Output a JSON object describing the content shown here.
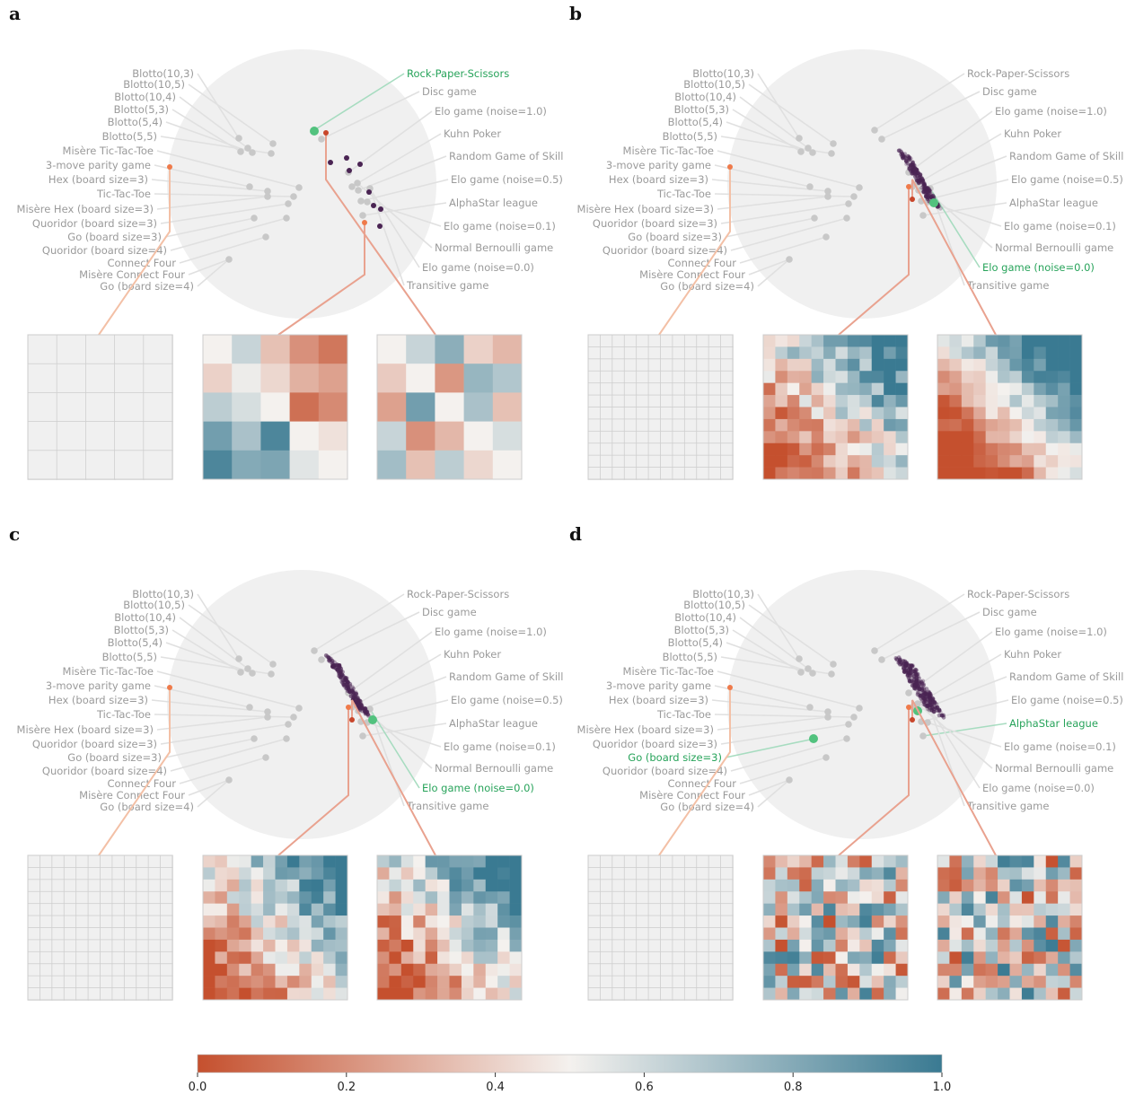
{
  "figure": {
    "panels": [
      {
        "letter": "a",
        "highlight": "Rock-Paper-Scissors",
        "grid": 5,
        "heatmaps": [
          [
            [
              0.5,
              0.62,
              0.35,
              0.2,
              0.12
            ],
            [
              0.4,
              0.52,
              0.42,
              0.3,
              0.25
            ],
            [
              0.65,
              0.58,
              0.5,
              0.1,
              0.18
            ],
            [
              0.85,
              0.7,
              0.95,
              0.5,
              0.45
            ],
            [
              0.95,
              0.8,
              0.82,
              0.55,
              0.5
            ]
          ],
          [
            [
              0.5,
              0.62,
              0.78,
              0.4,
              0.32
            ],
            [
              0.38,
              0.5,
              0.22,
              0.75,
              0.68
            ],
            [
              0.25,
              0.85,
              0.5,
              0.7,
              0.35
            ],
            [
              0.62,
              0.2,
              0.32,
              0.5,
              0.58
            ],
            [
              0.72,
              0.35,
              0.65,
              0.42,
              0.5
            ]
          ]
        ]
      },
      {
        "letter": "b",
        "highlight": "Elo game (noise=0.0)",
        "grid": 12
      },
      {
        "letter": "c",
        "highlight": "Elo game (noise=0.0)",
        "grid": 12
      },
      {
        "letter": "d",
        "highlight": "AlphaStar league",
        "highlight2": "Go (board size=3)",
        "grid": 12
      }
    ],
    "left_labels": [
      "Blotto(10,3)",
      "Blotto(10,5)",
      "Blotto(10,4)",
      "Blotto(5,3)",
      "Blotto(5,4)",
      "Blotto(5,5)",
      "Misère Tic-Tac-Toe",
      "3-move parity game",
      "Hex (board size=3)",
      "Tic-Tac-Toe",
      "Misère Hex (board size=3)",
      "Quoridor (board size=3)",
      "Go (board size=3)",
      "Quoridor (board size=4)",
      "Connect Four",
      "Misère Connect Four",
      "Go (board size=4)"
    ],
    "right_labels": [
      "Rock-Paper-Scissors",
      "Disc game",
      "Elo game (noise=1.0)",
      "Kuhn Poker",
      "Random Game of Skill",
      "Elo game (noise=0.5)",
      "AlphaStar league",
      "Elo game (noise=0.1)",
      "Normal Bernoulli game",
      "Elo game (noise=0.0)",
      "Transitive game"
    ],
    "colorbar": {
      "ticks": [
        "0.0",
        "0.2",
        "0.4",
        "0.6",
        "0.8",
        "1.0"
      ],
      "low_color": "#c5502e",
      "mid_color": "#f4f1ee",
      "high_color": "#3a7a92"
    },
    "colors": {
      "disc": "#f0f0f0",
      "game_dot": "#c8c8c8",
      "highlight": "#52c27e",
      "orange": "#ef7a4a",
      "red": "#c8462b",
      "cluster": "#4a2453"
    }
  }
}
